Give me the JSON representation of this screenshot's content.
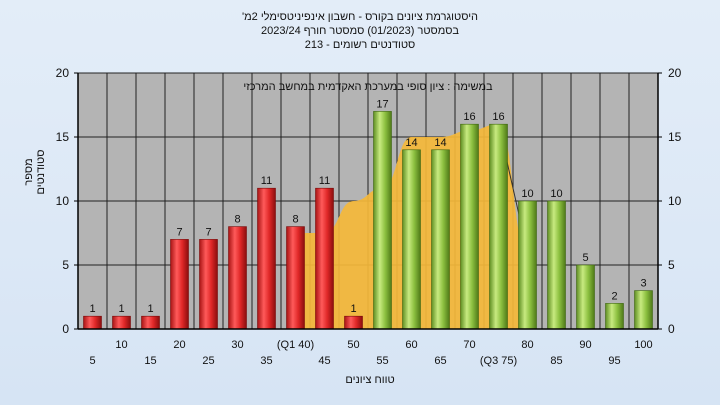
{
  "title": {
    "line1": "היסטוגרמת ציונים בקורס - חשבון אינפיניטסימלי 2מ'",
    "line2": "בסמסטר   (01/2023)  סמסטר חורף  2023/24",
    "line3": "סטודנטים רשומים - 213"
  },
  "colors": {
    "red": "#e02828",
    "green": "#8cc040",
    "area": "#f5b93a",
    "plot_bg": "#b4b4b4"
  },
  "chart_data": {
    "type": "bar",
    "title": "במשימה : ציון סופי במערכת האקדמית במחשב המרכזי",
    "xlabel": "טווח ציונים",
    "ylabel": "מספר סטודנטים",
    "ylim": [
      0,
      20
    ],
    "yticks": [
      0,
      5,
      10,
      15,
      20
    ],
    "grid": true,
    "categories": [
      "5",
      "10",
      "15",
      "20",
      "25",
      "30",
      "35",
      "40",
      "45",
      "50",
      "55",
      "60",
      "65",
      "70",
      "75",
      "80",
      "85",
      "90",
      "95",
      "100"
    ],
    "x_tick_labels": [
      "5",
      "10",
      "15",
      "20",
      "25",
      "30",
      "35",
      "(Q1 40)",
      "45",
      "50",
      "55",
      "60",
      "65",
      "70",
      "(Q3 75)",
      "80",
      "85",
      "90",
      "95",
      "100"
    ],
    "values": [
      1,
      1,
      1,
      7,
      7,
      8,
      11,
      8,
      11,
      1,
      17,
      14,
      14,
      16,
      16,
      10,
      10,
      5,
      2,
      3
    ],
    "fail_threshold": 55,
    "background_area": {
      "x": [
        "40",
        "45",
        "50",
        "55",
        "60",
        "65",
        "70",
        "75",
        "80"
      ],
      "values": [
        7.5,
        7.5,
        10,
        11,
        15,
        15,
        15.5,
        16,
        6
      ]
    }
  }
}
